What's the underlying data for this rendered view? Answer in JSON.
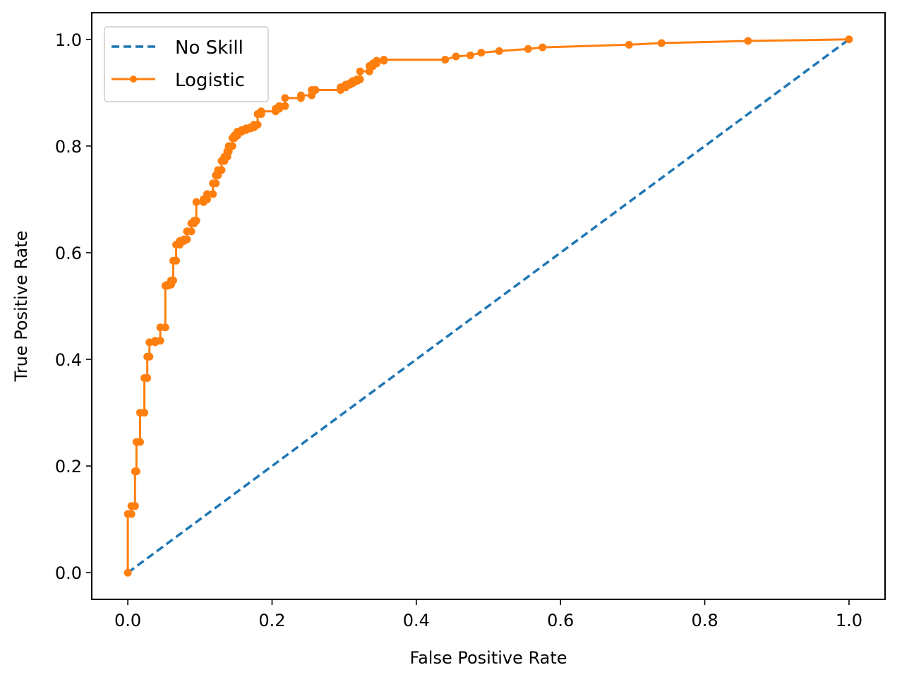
{
  "chart_data": {
    "type": "line",
    "title": "",
    "xlabel": "False Positive Rate",
    "ylabel": "True Positive Rate",
    "xlim": [
      -0.05,
      1.05
    ],
    "ylim": [
      -0.05,
      1.05
    ],
    "x_ticks": [
      0.0,
      0.2,
      0.4,
      0.6,
      0.8,
      1.0
    ],
    "y_ticks": [
      0.0,
      0.2,
      0.4,
      0.6,
      0.8,
      1.0
    ],
    "x_tick_labels": [
      "0.0",
      "0.2",
      "0.4",
      "0.6",
      "0.8",
      "1.0"
    ],
    "y_tick_labels": [
      "0.0",
      "0.2",
      "0.4",
      "0.6",
      "0.8",
      "1.0"
    ],
    "grid": false,
    "legend_position": "top-left",
    "series": [
      {
        "name": "No Skill",
        "color": "#1f77b4",
        "style": "dashed",
        "marker": "none",
        "x": [
          0,
          1
        ],
        "y": [
          0,
          1
        ]
      },
      {
        "name": "Logistic",
        "color": "#ff7f0e",
        "style": "solid",
        "marker": "dot",
        "x": [
          0,
          0,
          0.005,
          0.005,
          0.01,
          0.01,
          0.012,
          0.012,
          0.017,
          0.017,
          0.023,
          0.023,
          0.027,
          0.027,
          0.03,
          0.03,
          0.038,
          0.038,
          0.045,
          0.045,
          0.052,
          0.052,
          0.055,
          0.055,
          0.06,
          0.06,
          0.063,
          0.063,
          0.067,
          0.067,
          0.072,
          0.072,
          0.078,
          0.078,
          0.082,
          0.082,
          0.088,
          0.088,
          0.092,
          0.092,
          0.095,
          0.095,
          0.105,
          0.105,
          0.11,
          0.11,
          0.118,
          0.118,
          0.122,
          0.122,
          0.125,
          0.125,
          0.13,
          0.13,
          0.134,
          0.134,
          0.138,
          0.138,
          0.14,
          0.14,
          0.145,
          0.145,
          0.148,
          0.148,
          0.152,
          0.152,
          0.158,
          0.158,
          0.164,
          0.164,
          0.17,
          0.17,
          0.175,
          0.175,
          0.18,
          0.18,
          0.185,
          0.185,
          0.205,
          0.205,
          0.21,
          0.21,
          0.218,
          0.218,
          0.24,
          0.24,
          0.255,
          0.255,
          0.26,
          0.26,
          0.295,
          0.295,
          0.302,
          0.302,
          0.308,
          0.308,
          0.312,
          0.312,
          0.318,
          0.318,
          0.322,
          0.322,
          0.335,
          0.335,
          0.34,
          0.34,
          0.345,
          0.345,
          0.355,
          0.355,
          0.44,
          0.455,
          0.475,
          0.49,
          0.515,
          0.555,
          0.575,
          0.695,
          0.74,
          0.86,
          1.0
        ],
        "y": [
          0,
          0.11,
          0.11,
          0.125,
          0.125,
          0.19,
          0.19,
          0.245,
          0.245,
          0.3,
          0.3,
          0.365,
          0.365,
          0.405,
          0.405,
          0.432,
          0.432,
          0.435,
          0.435,
          0.46,
          0.46,
          0.538,
          0.538,
          0.54,
          0.54,
          0.548,
          0.548,
          0.585,
          0.585,
          0.615,
          0.615,
          0.622,
          0.622,
          0.625,
          0.625,
          0.64,
          0.64,
          0.655,
          0.655,
          0.66,
          0.66,
          0.695,
          0.695,
          0.7,
          0.7,
          0.71,
          0.71,
          0.73,
          0.73,
          0.745,
          0.745,
          0.755,
          0.755,
          0.772,
          0.772,
          0.78,
          0.78,
          0.79,
          0.79,
          0.8,
          0.8,
          0.815,
          0.815,
          0.82,
          0.82,
          0.827,
          0.827,
          0.83,
          0.83,
          0.833,
          0.833,
          0.835,
          0.835,
          0.84,
          0.84,
          0.86,
          0.86,
          0.865,
          0.865,
          0.87,
          0.87,
          0.875,
          0.875,
          0.89,
          0.89,
          0.895,
          0.895,
          0.905,
          0.905,
          0.905,
          0.905,
          0.91,
          0.91,
          0.915,
          0.915,
          0.918,
          0.918,
          0.922,
          0.922,
          0.925,
          0.925,
          0.94,
          0.94,
          0.95,
          0.95,
          0.955,
          0.955,
          0.96,
          0.96,
          0.962,
          0.962,
          0.968,
          0.97,
          0.975,
          0.978,
          0.982,
          0.985,
          0.99,
          0.993,
          0.997,
          1.0
        ]
      }
    ]
  }
}
